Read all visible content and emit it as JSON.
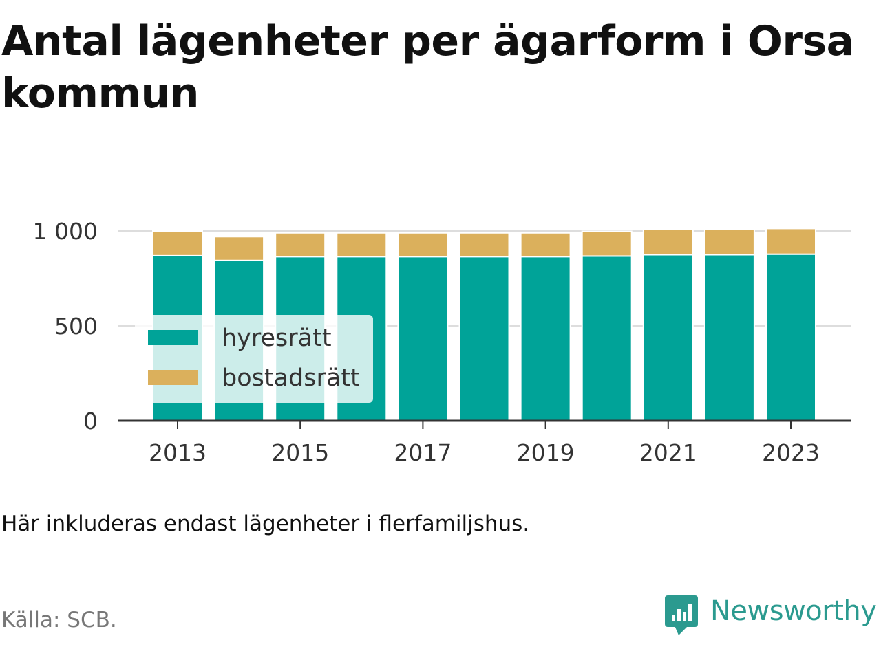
{
  "title": "Antal lägenheter per ägarform i Orsa kommun",
  "note": "Här inkluderas endast lägenheter i flerfamiljshus.",
  "source": "Källa: SCB.",
  "brand": "Newsworthy",
  "colors": {
    "hyresratt": "#00a398",
    "bostadsratt": "#dbb05c",
    "grid": "#dddddd",
    "axis": "#333333",
    "text": "#333333"
  },
  "chart_data": {
    "type": "bar",
    "stacked": true,
    "categories": [
      "2013",
      "2014",
      "2015",
      "2016",
      "2017",
      "2018",
      "2019",
      "2020",
      "2021",
      "2022",
      "2023"
    ],
    "series": [
      {
        "name": "hyresrätt",
        "values": [
          870,
          845,
          865,
          865,
          865,
          865,
          865,
          868,
          875,
          875,
          878
        ]
      },
      {
        "name": "bostadsrätt",
        "values": [
          130,
          125,
          125,
          125,
          125,
          125,
          125,
          130,
          135,
          135,
          135
        ]
      }
    ],
    "xticks": [
      "2013",
      "2015",
      "2017",
      "2019",
      "2021",
      "2023"
    ],
    "yticks": [
      0,
      500,
      1000
    ],
    "ytick_labels": [
      "0",
      "500",
      "1 000"
    ],
    "ylim": [
      0,
      1000
    ],
    "grid": "horizontal",
    "legend": "inside-left"
  }
}
